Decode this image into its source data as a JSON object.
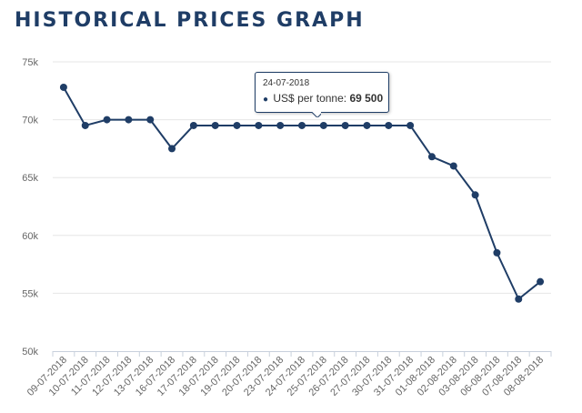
{
  "page": {
    "title": "HISTORICAL PRICES GRAPH"
  },
  "colors": {
    "series": "#1f3d66",
    "grid": "#e6e6e6",
    "title": "#1f3d66"
  },
  "tooltip": {
    "date": "24-07-2018",
    "series_label": "US$ per tonne:",
    "value": "69 500",
    "marker_icon": "circle-bullet-icon"
  },
  "chart_data": {
    "type": "line",
    "title": "",
    "xlabel": "",
    "ylabel": "",
    "ylim": [
      50000,
      75000
    ],
    "yticks": [
      50000,
      55000,
      60000,
      65000,
      70000,
      75000
    ],
    "ytick_labels": [
      "50k",
      "55k",
      "60k",
      "65k",
      "70k",
      "75k"
    ],
    "grid": "horizontal",
    "legend": "none",
    "categories": [
      "09-07-2018",
      "10-07-2018",
      "11-07-2018",
      "12-07-2018",
      "13-07-2018",
      "16-07-2018",
      "17-07-2018",
      "18-07-2018",
      "19-07-2018",
      "20-07-2018",
      "23-07-2018",
      "24-07-2018",
      "25-07-2018",
      "26-07-2018",
      "27-07-2018",
      "30-07-2018",
      "31-07-2018",
      "01-08-2018",
      "02-08-2018",
      "03-08-2018",
      "06-08-2018",
      "07-08-2018",
      "08-08-2018"
    ],
    "series": [
      {
        "values": [
          72800,
          69500,
          70000,
          70000,
          70000,
          67500,
          69500,
          69500,
          69500,
          69500,
          69500,
          69500,
          69500,
          69500,
          69500,
          69500,
          69500,
          66800,
          66000,
          63500,
          58500,
          54500,
          56000
        ]
      }
    ]
  }
}
